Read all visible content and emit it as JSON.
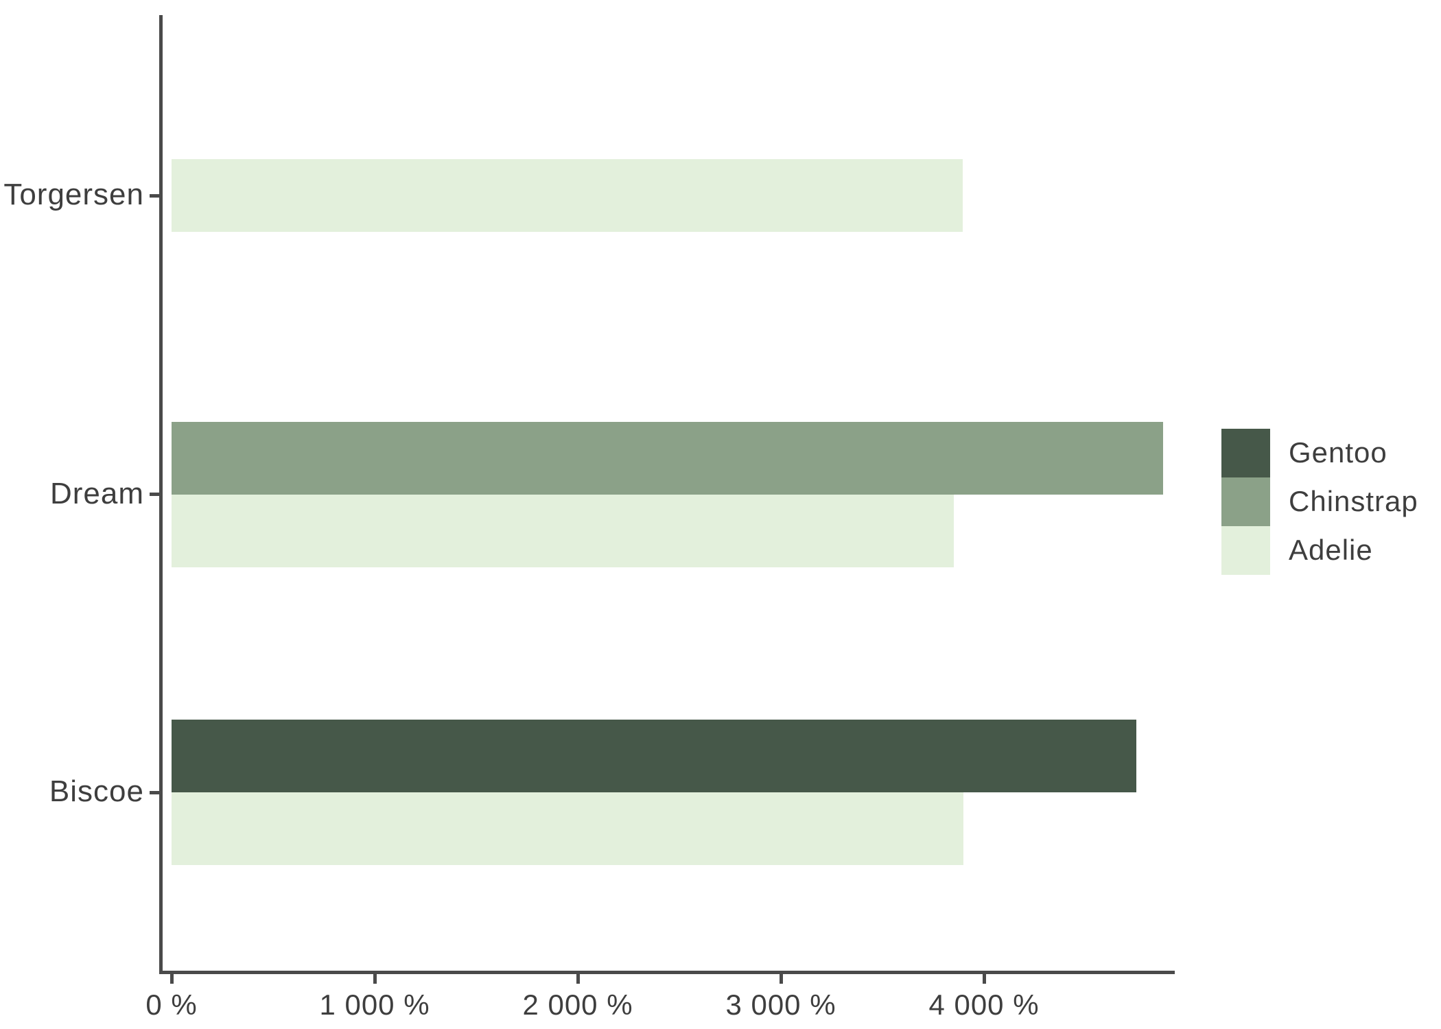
{
  "chart_data": {
    "type": "bar",
    "orientation": "horizontal",
    "title": "",
    "xlabel": "",
    "ylabel": "",
    "categories": [
      "Torgersen",
      "Dream",
      "Biscoe"
    ],
    "series": [
      {
        "name": "Gentoo",
        "color": "#465849",
        "values": [
          null,
          null,
          4750
        ]
      },
      {
        "name": "Chinstrap",
        "color": "#8BA188",
        "values": [
          null,
          4883,
          null
        ]
      },
      {
        "name": "Adelie",
        "color": "#E3F0DC",
        "values": [
          3895,
          3850,
          3898
        ]
      }
    ],
    "x_tick_labels": [
      "0 %",
      "1 000 %",
      "2 000 %",
      "3 000 %",
      "4 000 %"
    ],
    "x_tick_values": [
      0,
      1000,
      2000,
      3000,
      4000
    ],
    "xlim": [
      0,
      4950
    ],
    "grid": false,
    "legend_position": "right",
    "legend_order": [
      "Gentoo",
      "Chinstrap",
      "Adelie"
    ],
    "axis_color": "#4a4a4a",
    "text_color": "#3e3e3e",
    "background": "#ffffff"
  }
}
